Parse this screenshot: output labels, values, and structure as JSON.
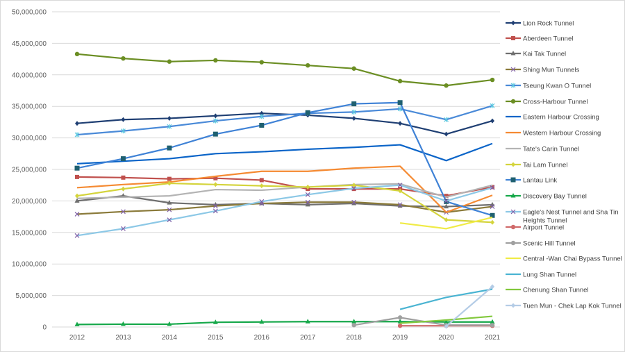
{
  "chart_data": {
    "type": "line",
    "title": "",
    "xlabel": "",
    "ylabel": "",
    "ylim": [
      0,
      50000000
    ],
    "yticks": [
      "0",
      "5,000,000",
      "10,000,000",
      "15,000,000",
      "20,000,000",
      "25,000,000",
      "30,000,000",
      "35,000,000",
      "40,000,000",
      "45,000,000",
      "50,000,000"
    ],
    "grid": true,
    "legend": "right",
    "categories": [
      "2012",
      "2013",
      "2014",
      "2015",
      "2016",
      "2017",
      "2018",
      "2019",
      "2020",
      "2021"
    ],
    "series": [
      {
        "name": "Lion Rock Tunnel",
        "color": "#1f3f73",
        "marker": "diamond",
        "values": [
          32300000,
          32900000,
          33100000,
          33500000,
          33900000,
          33600000,
          33100000,
          32300000,
          30600000,
          32700000
        ]
      },
      {
        "name": "Aberdeen Tunnel",
        "color": "#c0504d",
        "marker": "square",
        "values": [
          23800000,
          23700000,
          23500000,
          23600000,
          23300000,
          21900000,
          21900000,
          21900000,
          20800000,
          22200000
        ]
      },
      {
        "name": "Kai Tak Tunnel",
        "color": "#6f6f6f",
        "marker": "triangle",
        "values": [
          20000000,
          20800000,
          19700000,
          19400000,
          19600000,
          19400000,
          19600000,
          19200000,
          19100000,
          19400000
        ]
      },
      {
        "name": "Shing Mun Tunnels",
        "color": "#8a7a3a",
        "marker": "x",
        "values": [
          17900000,
          18300000,
          18600000,
          19200000,
          19600000,
          19800000,
          19800000,
          19400000,
          18200000,
          19100000
        ]
      },
      {
        "name": "Tseung Kwan O Tunnel",
        "color": "#4a8ad8",
        "marker": "asterisk",
        "values": [
          30500000,
          31100000,
          31800000,
          32700000,
          33400000,
          33900000,
          34100000,
          34600000,
          32900000,
          35100000
        ]
      },
      {
        "name": "Cross-Harbour Tunnel",
        "color": "#6b8e23",
        "marker": "circle",
        "values": [
          43300000,
          42600000,
          42100000,
          42300000,
          42000000,
          41500000,
          41000000,
          39000000,
          38300000,
          39200000
        ]
      },
      {
        "name": "Eastern Harbour Crossing",
        "color": "#0a64c8",
        "marker": "none",
        "values": [
          25900000,
          26300000,
          26700000,
          27500000,
          27800000,
          28200000,
          28500000,
          28900000,
          26400000,
          29100000
        ]
      },
      {
        "name": "Western Harbour Crossing",
        "color": "#f58a32",
        "marker": "none",
        "values": [
          22100000,
          22600000,
          23000000,
          23900000,
          24700000,
          24700000,
          25200000,
          25500000,
          18200000,
          20900000
        ]
      },
      {
        "name": "Tate's Carin Tunnel",
        "color": "#b4b4b4",
        "marker": "none",
        "values": [
          20400000,
          20600000,
          20800000,
          21800000,
          21700000,
          22200000,
          22600000,
          22700000,
          20600000,
          22500000
        ]
      },
      {
        "name": "Tai Lam Tunnel",
        "color": "#d4d43c",
        "marker": "diamond",
        "values": [
          20800000,
          21900000,
          22800000,
          22600000,
          22400000,
          22200000,
          22500000,
          21600000,
          17000000,
          16600000
        ]
      },
      {
        "name": "Lantau Link",
        "color": "#3f82d6",
        "marker": "square-dark",
        "values": [
          25200000,
          26700000,
          28400000,
          30600000,
          32000000,
          34000000,
          35400000,
          35600000,
          19900000,
          17700000
        ]
      },
      {
        "name": "Discovery Bay Tunnel",
        "color": "#16a84a",
        "marker": "triangle",
        "values": [
          400000,
          450000,
          450000,
          750000,
          800000,
          850000,
          850000,
          850000,
          800000,
          800000
        ]
      },
      {
        "name": "Eagle's Nest Tunnel and Sha Tin Heights Tunnel",
        "color": "#8cc8e6",
        "marker": "x",
        "values": [
          14500000,
          15600000,
          17000000,
          18400000,
          19900000,
          21000000,
          22000000,
          22500000,
          20000000,
          22100000
        ]
      },
      {
        "name": "Airport Tunnel",
        "color": "#d06a6a",
        "marker": "circle",
        "values": [
          null,
          null,
          null,
          null,
          null,
          null,
          null,
          200000,
          200000,
          200000
        ]
      },
      {
        "name": "Scenic Hill Tunnel",
        "color": "#a0a0a0",
        "marker": "circle",
        "values": [
          null,
          null,
          null,
          null,
          null,
          null,
          300000,
          1500000,
          300000,
          300000
        ]
      },
      {
        "name": "Central -Wan Chai Bypass Tunnel",
        "color": "#f0eb46",
        "marker": "none",
        "values": [
          null,
          null,
          null,
          null,
          null,
          null,
          null,
          16500000,
          15600000,
          17400000
        ]
      },
      {
        "name": "Lung Shan Tunnel",
        "color": "#4ab4d2",
        "marker": "none",
        "values": [
          null,
          null,
          null,
          null,
          null,
          null,
          null,
          2800000,
          4700000,
          6000000
        ]
      },
      {
        "name": "Chenung Shan Tunnel",
        "color": "#82c83c",
        "marker": "none",
        "values": [
          null,
          null,
          null,
          null,
          null,
          null,
          null,
          600000,
          1100000,
          1700000
        ]
      },
      {
        "name": "Tuen Mun - Chek Lap Kok Tunnel",
        "color": "#b4cce6",
        "marker": "diamond",
        "values": [
          null,
          null,
          null,
          null,
          null,
          null,
          null,
          null,
          100000,
          6400000
        ]
      }
    ]
  }
}
